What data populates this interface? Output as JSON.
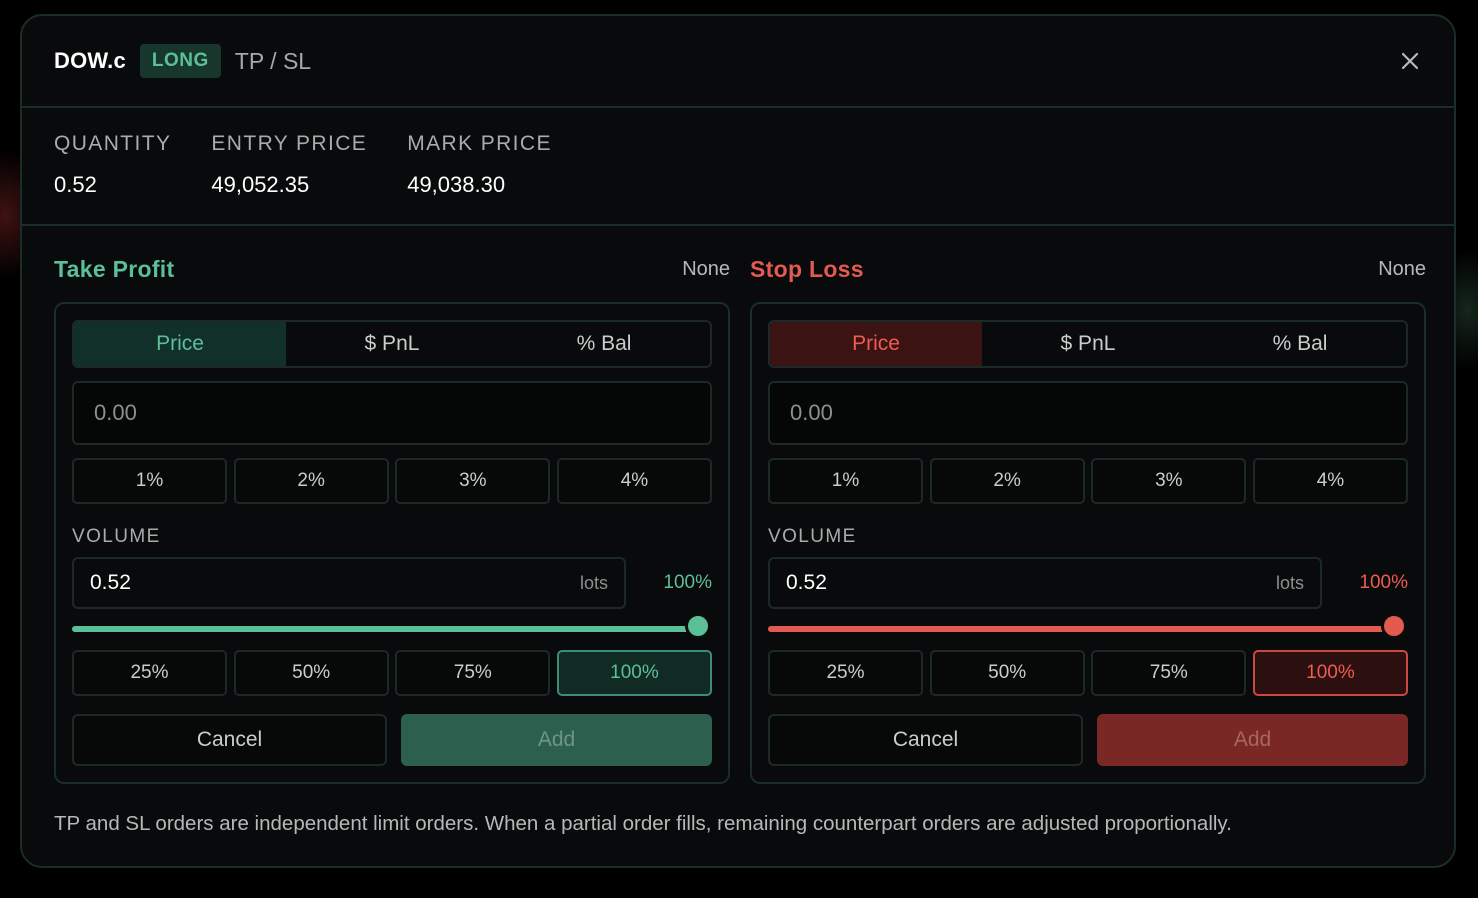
{
  "header": {
    "symbol": "DOW.c",
    "side": "LONG",
    "title": "TP / SL",
    "close_icon": "close-icon"
  },
  "stats": [
    {
      "label": "QUANTITY",
      "value": "0.52"
    },
    {
      "label": "ENTRY PRICE",
      "value": "49,052.35"
    },
    {
      "label": "MARK PRICE",
      "value": "49,038.30"
    }
  ],
  "take_profit": {
    "title": "Take Profit",
    "status": "None",
    "modes": [
      "Price",
      "$ PnL",
      "% Bal"
    ],
    "active_mode": "Price",
    "price_placeholder": "0.00",
    "presets": [
      "1%",
      "2%",
      "3%",
      "4%"
    ],
    "volume_label": "VOLUME",
    "volume_value": "0.52",
    "volume_unit": "lots",
    "volume_pct_text": "100%",
    "volume_fraction": 1.0,
    "volume_presets": [
      "25%",
      "50%",
      "75%",
      "100%"
    ],
    "selected_volume_preset": "100%",
    "cancel_label": "Cancel",
    "add_label": "Add",
    "accent_color": "#5bbf98"
  },
  "stop_loss": {
    "title": "Stop Loss",
    "status": "None",
    "modes": [
      "Price",
      "$ PnL",
      "% Bal"
    ],
    "active_mode": "Price",
    "price_placeholder": "0.00",
    "presets": [
      "1%",
      "2%",
      "3%",
      "4%"
    ],
    "volume_label": "VOLUME",
    "volume_value": "0.52",
    "volume_unit": "lots",
    "volume_pct_text": "100%",
    "volume_fraction": 1.0,
    "volume_presets": [
      "25%",
      "50%",
      "75%",
      "100%"
    ],
    "selected_volume_preset": "100%",
    "cancel_label": "Cancel",
    "add_label": "Add",
    "accent_color": "#e35a50"
  },
  "footnote": "TP and SL orders are independent limit orders. When a partial order fills, remaining counterpart orders are adjusted proportionally."
}
